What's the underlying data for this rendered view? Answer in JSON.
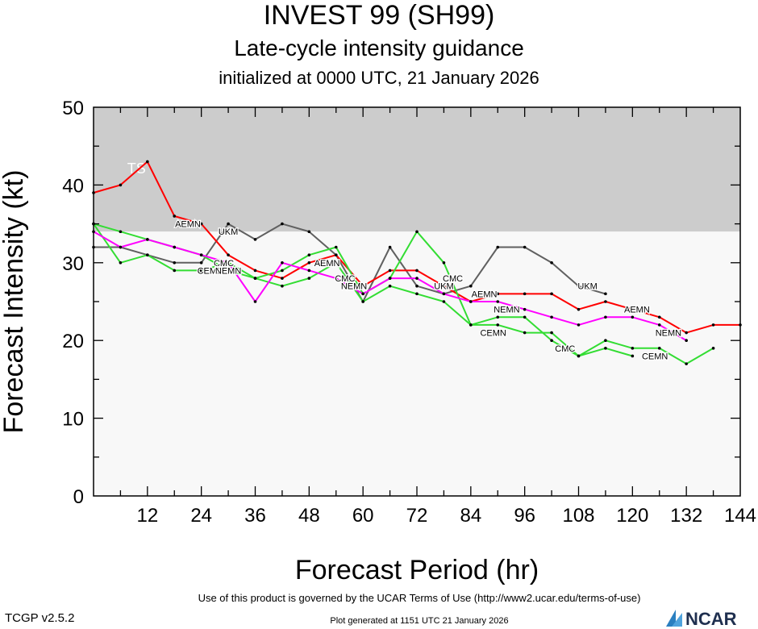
{
  "header": {
    "title": "INVEST 99 (SH99)",
    "subtitle": "Late-cycle intensity guidance",
    "init_line": "initialized at 0000 UTC, 21 January 2026"
  },
  "footer": {
    "terms": "Use of this product is governed by the UCAR Terms of Use (http://www2.ucar.edu/terms-of-use)",
    "generated": "Plot generated at 1151 UTC   21 January 2026",
    "version": "TCGP v2.5.2",
    "logo_text": "NCAR"
  },
  "chart_data": {
    "type": "line",
    "title": "INVEST 99 (SH99)",
    "xlabel": "Forecast Period (hr)",
    "ylabel": "Forecast Intensity (kt)",
    "xlim": [
      0,
      144
    ],
    "ylim": [
      0,
      50
    ],
    "xticks": [
      12,
      24,
      36,
      48,
      60,
      72,
      84,
      96,
      108,
      120,
      132,
      144
    ],
    "yticks": [
      0,
      10,
      20,
      30,
      40,
      50
    ],
    "grid": false,
    "bands": [
      {
        "label": "TS",
        "from": 34,
        "to": 50,
        "color": "#cccccc"
      },
      {
        "label": "",
        "from": 0,
        "to": 34,
        "color": "#f8f8f8"
      }
    ],
    "series": [
      {
        "name": "UKM",
        "color": "#606060",
        "x": [
          0,
          6,
          12,
          18,
          24,
          30,
          36,
          42,
          48,
          54,
          60,
          66,
          72,
          78,
          84,
          90,
          96,
          102,
          108,
          114
        ],
        "y": [
          32,
          32,
          31,
          30,
          30,
          35,
          33,
          35,
          34,
          31,
          25,
          32,
          27,
          26,
          27,
          32,
          32,
          30,
          27,
          26
        ],
        "labels": [
          {
            "x": 30,
            "y": 34
          },
          {
            "x": 78,
            "y": 27
          },
          {
            "x": 110,
            "y": 27
          }
        ]
      },
      {
        "name": "AEMN",
        "color": "#ff0000",
        "x": [
          0,
          6,
          12,
          18,
          24,
          30,
          36,
          42,
          48,
          54,
          60,
          66,
          72,
          78,
          84,
          90,
          96,
          102,
          108,
          114,
          120,
          126,
          132,
          138,
          144
        ],
        "y": [
          39,
          40,
          43,
          36,
          35,
          31,
          29,
          28,
          30,
          31,
          27,
          29,
          29,
          27,
          25,
          26,
          26,
          26,
          24,
          25,
          24,
          23,
          21,
          22,
          22
        ],
        "labels": [
          {
            "x": 21,
            "y": 35
          },
          {
            "x": 52,
            "y": 30
          },
          {
            "x": 87,
            "y": 26
          },
          {
            "x": 121,
            "y": 24
          }
        ]
      },
      {
        "name": "CMC",
        "color": "#33dd33",
        "x": [
          0,
          6,
          12,
          18,
          24,
          30,
          36,
          42,
          48,
          54,
          60,
          66,
          72,
          78,
          84,
          90,
          96,
          102,
          108,
          114,
          120
        ],
        "y": [
          35,
          34,
          33,
          32,
          31,
          29,
          28,
          29,
          31,
          32,
          26,
          28,
          34,
          30,
          22,
          23,
          23,
          20,
          18,
          19,
          18
        ],
        "labels": [
          {
            "x": 29,
            "y": 30
          },
          {
            "x": 56,
            "y": 28
          },
          {
            "x": 80,
            "y": 28
          },
          {
            "x": 105,
            "y": 19
          }
        ]
      },
      {
        "name": "CEMN",
        "color": "#33dd33",
        "x": [
          0,
          6,
          12,
          18,
          24,
          30,
          36,
          42,
          48,
          54,
          60,
          66,
          72,
          78,
          84,
          90,
          96,
          102,
          108,
          114,
          120,
          126,
          132,
          138
        ],
        "y": [
          35,
          30,
          31,
          29,
          29,
          30,
          28,
          27,
          28,
          30,
          25,
          27,
          26,
          25,
          22,
          22,
          21,
          21,
          18,
          20,
          19,
          19,
          17,
          19
        ],
        "labels": [
          {
            "x": 26,
            "y": 29
          },
          {
            "x": 89,
            "y": 21
          },
          {
            "x": 125,
            "y": 18
          }
        ]
      },
      {
        "name": "NEMN",
        "color": "#ff00ff",
        "x": [
          0,
          6,
          12,
          18,
          24,
          30,
          36,
          42,
          48,
          54,
          60,
          66,
          72,
          78,
          84,
          90,
          96,
          102,
          108,
          114,
          120,
          126,
          132
        ],
        "y": [
          34,
          32,
          33,
          32,
          31,
          30,
          25,
          30,
          29,
          28,
          26,
          28,
          28,
          26,
          25,
          25,
          24,
          23,
          22,
          23,
          23,
          22,
          20
        ],
        "labels": [
          {
            "x": 30,
            "y": 29
          },
          {
            "x": 58,
            "y": 27
          },
          {
            "x": 92,
            "y": 24
          },
          {
            "x": 128,
            "y": 21
          }
        ]
      }
    ]
  }
}
